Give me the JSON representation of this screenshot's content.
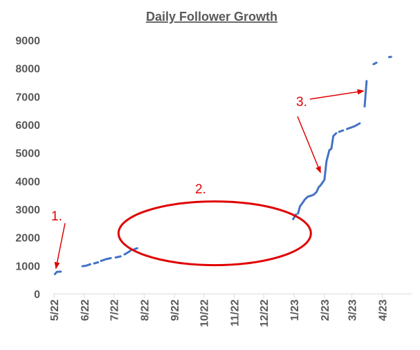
{
  "chart_data": {
    "type": "line",
    "title": "Daily Follower Growth",
    "xlabel": "",
    "ylabel": "",
    "ylim": [
      0,
      9000
    ],
    "yticks": [
      0,
      1000,
      2000,
      3000,
      4000,
      5000,
      6000,
      7000,
      8000,
      9000
    ],
    "ytick_labels": [
      "0",
      "1000",
      "2000",
      "3000",
      "4000",
      "5000",
      "6000",
      "7000",
      "8000",
      "9000"
    ],
    "xlim": [
      "2022-05-01",
      "2023-05-01"
    ],
    "xticks": [
      {
        "date": "2022-05-01",
        "label": "5/22"
      },
      {
        "date": "2022-06-01",
        "label": "6/22"
      },
      {
        "date": "2022-07-01",
        "label": "7/22"
      },
      {
        "date": "2022-08-01",
        "label": "8/22"
      },
      {
        "date": "2022-09-01",
        "label": "9/22"
      },
      {
        "date": "2022-10-01",
        "label": "10/22"
      },
      {
        "date": "2022-11-01",
        "label": "11/22"
      },
      {
        "date": "2022-12-01",
        "label": "12/22"
      },
      {
        "date": "2023-01-01",
        "label": "1/23"
      },
      {
        "date": "2023-02-01",
        "label": "2/23"
      },
      {
        "date": "2023-03-01",
        "label": "3/23"
      },
      {
        "date": "2023-04-01",
        "label": "4/23"
      }
    ],
    "series": [
      {
        "color": "#4472c4",
        "segments": [
          [
            [
              "2022-05-02",
              700
            ],
            [
              "2022-05-04",
              780
            ],
            [
              "2022-05-08",
              790
            ]
          ],
          [
            [
              "2022-05-30",
              980
            ],
            [
              "2022-06-03",
              1000
            ],
            [
              "2022-06-07",
              1050
            ]
          ],
          [
            [
              "2022-06-11",
              1080
            ],
            [
              "2022-06-15",
              1120
            ]
          ],
          [
            [
              "2022-06-18",
              1170
            ],
            [
              "2022-06-23",
              1230
            ],
            [
              "2022-06-28",
              1270
            ]
          ],
          [
            [
              "2022-07-03",
              1290
            ],
            [
              "2022-07-08",
              1330
            ]
          ],
          [
            [
              "2022-07-12",
              1400
            ],
            [
              "2022-07-16",
              1480
            ],
            [
              "2022-07-19",
              1560
            ]
          ],
          [
            [
              "2022-07-22",
              1580
            ],
            [
              "2022-07-25",
              1620
            ]
          ],
          [
            [
              "2022-12-31",
              2650
            ],
            [
              "2023-01-03",
              2820
            ]
          ],
          [
            [
              "2023-01-05",
              2850
            ],
            [
              "2023-01-07",
              3100
            ],
            [
              "2023-01-09",
              3200
            ],
            [
              "2023-01-12",
              3350
            ],
            [
              "2023-01-15",
              3450
            ],
            [
              "2023-01-18",
              3480
            ],
            [
              "2023-01-21",
              3520
            ],
            [
              "2023-01-24",
              3620
            ],
            [
              "2023-01-26",
              3780
            ],
            [
              "2023-01-28",
              3850
            ],
            [
              "2023-01-30",
              3950
            ],
            [
              "2023-02-01",
              4050
            ],
            [
              "2023-02-03",
              4700
            ],
            [
              "2023-02-06",
              5100
            ],
            [
              "2023-02-08",
              5150
            ],
            [
              "2023-02-10",
              5600
            ],
            [
              "2023-02-13",
              5700
            ]
          ],
          [
            [
              "2023-02-16",
              5750
            ],
            [
              "2023-02-20",
              5800
            ]
          ],
          [
            [
              "2023-02-24",
              5850
            ],
            [
              "2023-02-28",
              5900
            ],
            [
              "2023-03-04",
              5950
            ],
            [
              "2023-03-09",
              6050
            ]
          ],
          [
            [
              "2023-03-14",
              6650
            ],
            [
              "2023-03-16",
              7550
            ]
          ],
          [
            [
              "2023-03-23",
              8150
            ],
            [
              "2023-03-26",
              8200
            ]
          ],
          [
            [
              "2023-04-08",
              8400
            ],
            [
              "2023-04-10",
              8410
            ]
          ]
        ]
      }
    ],
    "annotations": [
      {
        "label": "1.",
        "kind": "arrow",
        "target": [
          "2022-05-03",
          900
        ]
      },
      {
        "label": "2.",
        "kind": "ellipse",
        "center": [
          "2022-10-12",
          2150
        ]
      },
      {
        "label": "3.",
        "kind": "arrow",
        "target": [
          "2023-01-28",
          4300
        ]
      },
      {
        "label": "",
        "kind": "arrow",
        "target": [
          "2023-03-13",
          7200
        ]
      }
    ],
    "annotation_color": "#e00000",
    "grid": false
  }
}
